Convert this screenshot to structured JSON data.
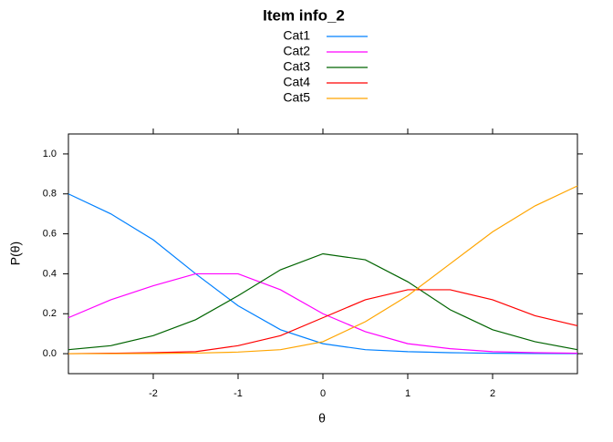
{
  "chart_data": {
    "type": "line",
    "title": "Item info_2",
    "x_label": "θ",
    "y_label": "P(θ)",
    "x": [
      -3,
      -2.5,
      -2,
      -1.5,
      -1,
      -0.5,
      0,
      0.5,
      1,
      1.5,
      2,
      2.5,
      3
    ],
    "series": [
      {
        "name": "Cat1",
        "color": "#0080ff",
        "values": [
          0.8,
          0.7,
          0.57,
          0.4,
          0.24,
          0.12,
          0.05,
          0.02,
          0.01,
          0.005,
          0.002,
          0.001,
          0
        ]
      },
      {
        "name": "Cat2",
        "color": "#ff00ff",
        "values": [
          0.18,
          0.27,
          0.34,
          0.4,
          0.4,
          0.32,
          0.2,
          0.11,
          0.05,
          0.025,
          0.01,
          0.005,
          0.002
        ]
      },
      {
        "name": "Cat3",
        "color": "#006400",
        "values": [
          0.02,
          0.04,
          0.09,
          0.17,
          0.29,
          0.42,
          0.5,
          0.47,
          0.36,
          0.22,
          0.12,
          0.06,
          0.02
        ]
      },
      {
        "name": "Cat4",
        "color": "#ff0000",
        "values": [
          0,
          0.002,
          0.005,
          0.01,
          0.04,
          0.09,
          0.18,
          0.27,
          0.32,
          0.32,
          0.27,
          0.19,
          0.14
        ]
      },
      {
        "name": "Cat5",
        "color": "#ffa500",
        "values": [
          0,
          0,
          0.001,
          0.003,
          0.008,
          0.02,
          0.06,
          0.16,
          0.29,
          0.45,
          0.61,
          0.74,
          0.84
        ]
      }
    ],
    "xlim": [
      -3,
      3
    ],
    "ylim": [
      -0.1,
      1.1
    ],
    "xticks": [
      -2,
      -1,
      0,
      1,
      2
    ],
    "yticks": [
      {
        "value": 0,
        "label": "0.0"
      },
      0.2,
      0.4,
      0.6,
      0.8,
      {
        "value": 1,
        "label": "1.0"
      }
    ],
    "legend": "top"
  }
}
